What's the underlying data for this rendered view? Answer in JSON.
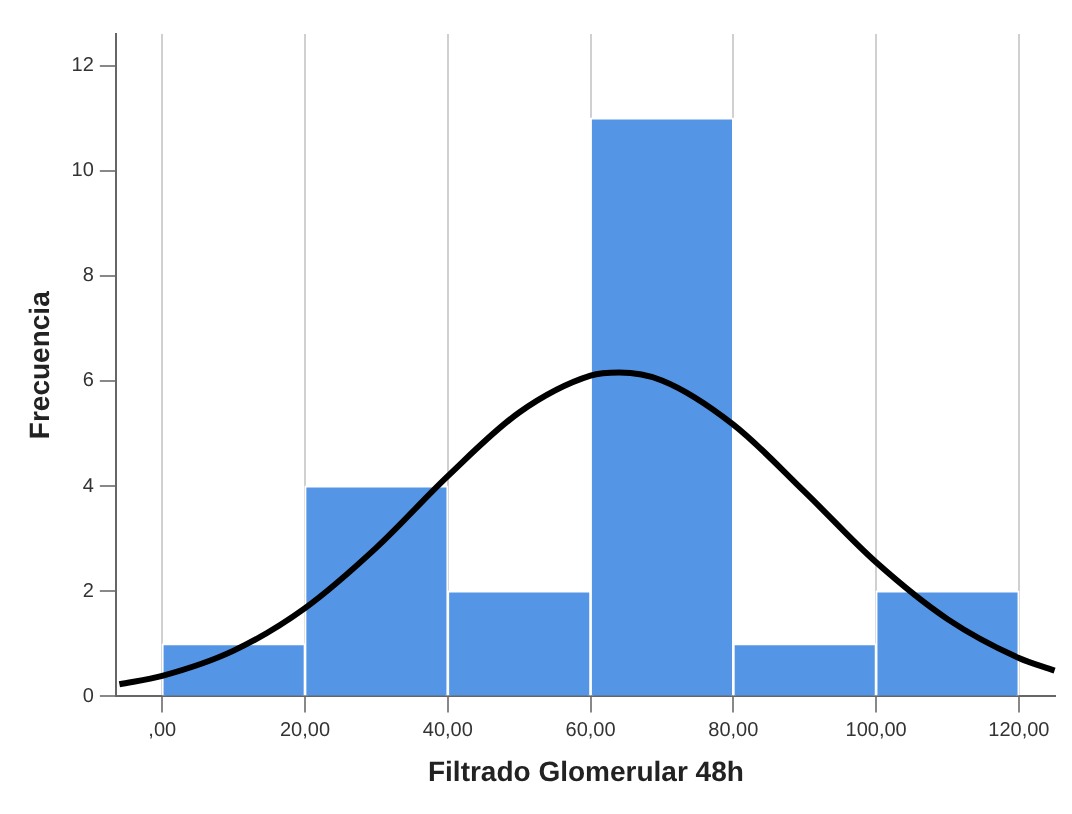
{
  "chart_data": {
    "type": "histogram",
    "xlabel": "Filtrado Glomerular 48h",
    "ylabel": "Frecuencia",
    "bins": [
      0,
      20,
      40,
      60,
      80,
      100,
      120
    ],
    "values": [
      1,
      4,
      2,
      11,
      1,
      2
    ],
    "color": "#5595e6",
    "series": [
      {
        "type": "line",
        "color": "#000000",
        "x": [
          -6,
          0,
          10,
          20,
          30,
          40,
          50,
          60,
          64,
          70,
          80,
          90,
          100,
          110,
          120,
          125
        ],
        "values": [
          0.23,
          0.39,
          0.87,
          1.68,
          2.83,
          4.19,
          5.4,
          6.1,
          6.16,
          6.01,
          5.17,
          3.89,
          2.55,
          1.47,
          0.73,
          0.49
        ]
      }
    ],
    "xlim": [
      -6.5,
      125.2
    ],
    "xticks": [
      {
        "value": 0,
        "label": ",00"
      },
      {
        "value": 20,
        "label": "20,00"
      },
      {
        "value": 40,
        "label": "40,00"
      },
      {
        "value": 60,
        "label": "60,00"
      },
      {
        "value": 80,
        "label": "80,00"
      },
      {
        "value": 100,
        "label": "100,00"
      },
      {
        "value": 120,
        "label": "120,00"
      }
    ],
    "ylim": [
      0,
      12.6
    ],
    "yticks": [
      0,
      2,
      4,
      6,
      8,
      10,
      12
    ],
    "grid": "x",
    "legend": false,
    "marker": "none",
    "line_style": "solid"
  }
}
